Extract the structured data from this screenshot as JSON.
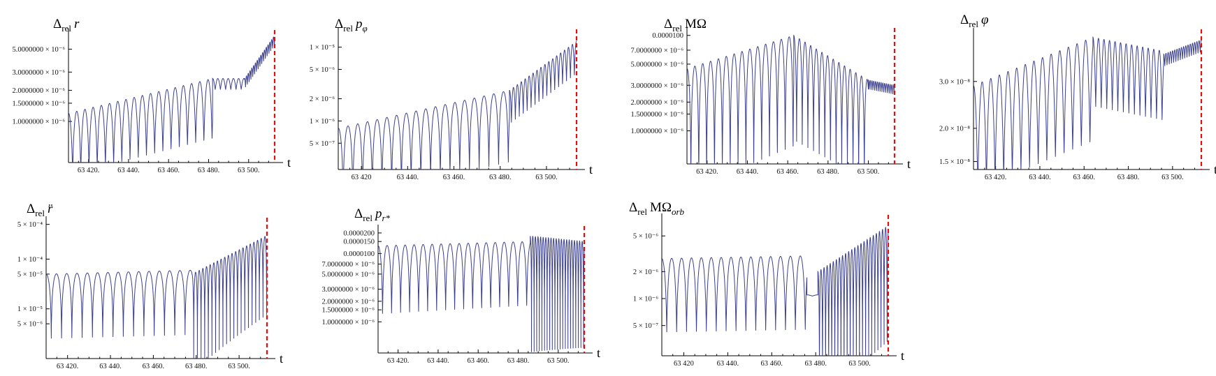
{
  "chart_data": [
    {
      "type": "line",
      "title": "Δrel r",
      "title_parts": {
        "main": "Δ",
        "sub": "rel",
        "tail": "r"
      },
      "xlabel": "t",
      "x_ticks": [
        "63 420.",
        "63 440.",
        "63 460.",
        "63 480.",
        "63 500."
      ],
      "x_tick_values": [
        63420,
        63440,
        63460,
        63480,
        63500
      ],
      "xlim": [
        63410,
        63513
      ],
      "y_scale": "log",
      "ylim": [
        4e-07,
        7.2e-06
      ],
      "y_ticks": [
        "5.0000000 × 10⁻⁶",
        "3.0000000 × 10⁻⁶",
        "2.0000000 × 10⁻⁶",
        "1.5000000 × 10⁻⁶",
        "1.0000000 × 10⁻⁶"
      ],
      "y_tick_values": [
        5e-06,
        3e-06,
        2e-06,
        1.5e-06,
        1e-06
      ],
      "cutoff_t": 63513,
      "series": [
        {
          "color": "#3b3f8c",
          "segments": [
            {
              "t0": 63410,
              "t1": 63482,
              "period": 4.1,
              "amp0": 1.2e-06,
              "amp1": 2.6e-06,
              "floor_ratio": 0.25
            },
            {
              "t0": 63482,
              "t1": 63498,
              "period": 2.6,
              "amp0": 2.6e-06,
              "amp1": 2.6e-06,
              "floor_ratio": 0.78
            },
            {
              "t0": 63498,
              "t1": 63513,
              "period": 0.9,
              "amp0": 2.6e-06,
              "amp1": 6.8e-06,
              "floor_ratio": 0.8
            }
          ]
        }
      ]
    },
    {
      "type": "line",
      "title": "Δrel pφ",
      "title_parts": {
        "main": "Δ",
        "sub": "rel",
        "tail": "p",
        "tail_sub": "φ"
      },
      "xlabel": "t",
      "x_ticks": [
        "63 420",
        "63 440.",
        "63 460.",
        "63 480.",
        "63 500."
      ],
      "x_tick_values": [
        63420,
        63440,
        63460,
        63480,
        63500
      ],
      "xlim": [
        63410,
        63513
      ],
      "y_scale": "log",
      "ylim": [
        2.2e-07,
        1.6e-05
      ],
      "y_ticks": [
        "1 × 10⁻⁵",
        "5 × 10⁻⁶",
        "2 × 10⁻⁶",
        "1 × 10⁻⁶",
        "5 × 10⁻⁷"
      ],
      "y_tick_values": [
        1e-05,
        5e-06,
        2e-06,
        1e-06,
        5e-07
      ],
      "cutoff_t": 63513,
      "series": [
        {
          "color": "#3b3f8c",
          "segments": [
            {
              "t0": 63410,
              "t1": 63484,
              "period": 4.2,
              "amp0": 8e-07,
              "amp1": 2.6e-06,
              "floor_ratio": 0.1
            },
            {
              "t0": 63484,
              "t1": 63513,
              "period": 1.7,
              "amp0": 2.6e-06,
              "amp1": 1.2e-05,
              "floor_ratio": 0.35
            }
          ]
        }
      ]
    },
    {
      "type": "line",
      "title": "Δrel MΩ",
      "title_parts": {
        "main": "Δ",
        "sub": "rel",
        "tail": "MΩ"
      },
      "xlabel": "t",
      "x_ticks": [
        "63 420.",
        "63 440.",
        "63 460.",
        "63 480.",
        "63 500."
      ],
      "x_tick_values": [
        63420,
        63440,
        63460,
        63480,
        63500
      ],
      "xlim": [
        63410,
        63513
      ],
      "y_scale": "log",
      "ylim": [
        4.5e-07,
        1.12e-05
      ],
      "y_ticks": [
        "0.0000100",
        "7.0000000 × 10⁻⁶",
        "5.0000000 × 10⁻⁶",
        "3.0000000 × 10⁻⁶",
        "2.0000000 × 10⁻⁶",
        "1.5000000 × 10⁻⁶",
        "1.0000000 × 10⁻⁶"
      ],
      "y_tick_values": [
        1e-05,
        7e-06,
        5e-06,
        3e-06,
        2e-06,
        1.5e-06,
        1e-06
      ],
      "cutoff_t": 63513,
      "series": [
        {
          "color": "#3b3f8c",
          "segments": [
            {
              "t0": 63410,
              "t1": 63463,
              "period": 3.9,
              "amp0": 4.5e-06,
              "amp1": 1e-05,
              "floor_ratio": 0.05
            },
            {
              "t0": 63463,
              "t1": 63500,
              "period": 2.8,
              "amp0": 1e-05,
              "amp1": 3.4e-06,
              "floor_ratio": 0.08
            },
            {
              "t0": 63500,
              "t1": 63513,
              "period": 0.9,
              "amp0": 3.4e-06,
              "amp1": 3e-06,
              "floor_ratio": 0.8
            }
          ]
        }
      ]
    },
    {
      "type": "line",
      "title": "Δrel φ",
      "title_parts": {
        "main": "Δ",
        "sub": "rel",
        "tail": "φ"
      },
      "xlabel": "t",
      "x_ticks": [
        "63 420.",
        "63 440.",
        "63 460.",
        "63 480.",
        "63 500."
      ],
      "x_tick_values": [
        63420,
        63440,
        63460,
        63480,
        63500
      ],
      "xlim": [
        63410,
        63513
      ],
      "y_scale": "log",
      "ylim": [
        1.4e-08,
        4.6e-08
      ],
      "y_ticks": [
        "3.0 × 10⁻⁸",
        "2.0 × 10⁻⁸",
        "1.5 × 10⁻⁸"
      ],
      "y_tick_values": [
        3e-08,
        2e-08,
        1.5e-08
      ],
      "cutoff_t": 63513,
      "series": [
        {
          "color": "#3b3f8c",
          "segments": [
            {
              "t0": 63410,
              "t1": 63464,
              "period": 3.9,
              "amp0": 2.9e-08,
              "amp1": 4.4e-08,
              "floor_ratio": 0.4
            },
            {
              "t0": 63464,
              "t1": 63496,
              "period": 2.5,
              "amp0": 4.4e-08,
              "amp1": 3.9e-08,
              "floor_ratio": 0.55
            },
            {
              "t0": 63496,
              "t1": 63513,
              "period": 1.0,
              "amp0": 3.8e-08,
              "amp1": 4.3e-08,
              "floor_ratio": 0.9
            }
          ]
        }
      ]
    },
    {
      "type": "line",
      "title": "Δrel r̈",
      "title_parts": {
        "main": "Δ",
        "sub": "rel",
        "tail": "r̈"
      },
      "xlabel": "t",
      "x_ticks": [
        "63 420.",
        "63 440.",
        "63 460.",
        "63 480.",
        "63 500."
      ],
      "x_tick_values": [
        63420,
        63440,
        63460,
        63480,
        63500
      ],
      "xlim": [
        63410,
        63513
      ],
      "y_scale": "log",
      "ylim": [
        1e-06,
        0.0006
      ],
      "y_ticks": [
        "5 × 10⁻⁴",
        "1 × 10⁻⁴",
        "5 × 10⁻⁵",
        "1 × 10⁻⁵",
        "5 × 10⁻⁶"
      ],
      "y_tick_values": [
        0.0005,
        0.0001,
        5e-05,
        1e-05,
        5e-06
      ],
      "cutoff_t": 63513,
      "series": [
        {
          "color": "#3b3f8c",
          "segments": [
            {
              "t0": 63410,
              "t1": 63478,
              "period": 4.8,
              "amp0": 5e-05,
              "amp1": 6e-05,
              "floor_ratio": 0.05
            },
            {
              "t0": 63478,
              "t1": 63513,
              "period": 1.7,
              "amp0": 5e-05,
              "amp1": 0.0003,
              "floor_ratio": 0.01
            }
          ]
        }
      ]
    },
    {
      "type": "line",
      "title": "Δrel pr*",
      "title_parts": {
        "main": "Δ",
        "sub": "rel",
        "tail": "p",
        "tail_sub": "r*"
      },
      "xlabel": "t",
      "x_ticks": [
        "63 420.",
        "63 440.",
        "63 460.",
        "63 480.",
        "63 500."
      ],
      "x_tick_values": [
        63420,
        63440,
        63460,
        63480,
        63500
      ],
      "xlim": [
        63410,
        63513
      ],
      "y_scale": "log",
      "ylim": [
        3.5e-07,
        2.3e-05
      ],
      "y_ticks": [
        "0.0000200",
        "0.0000150",
        "0.0000100",
        "7.0000000 × 10⁻⁶",
        "5.0000000 × 10⁻⁶",
        "3.0000000 × 10⁻⁶",
        "2.0000000 × 10⁻⁶",
        "1.5000000 × 10⁻⁶",
        "1.0000000 × 10⁻⁶"
      ],
      "y_tick_values": [
        2e-05,
        1.5e-05,
        1e-05,
        7e-06,
        5e-06,
        3e-06,
        2e-06,
        1.5e-06,
        1e-06
      ],
      "cutoff_t": 63513,
      "series": [
        {
          "color": "#3b3f8c",
          "segments": [
            {
              "t0": 63410,
              "t1": 63486,
              "period": 4.5,
              "amp0": 1.3e-05,
              "amp1": 1.5e-05,
              "floor_ratio": 0.1
            },
            {
              "t0": 63486,
              "t1": 63513,
              "period": 1.3,
              "amp0": 1.8e-05,
              "amp1": 1.5e-05,
              "floor_ratio": 0.02
            }
          ]
        }
      ]
    },
    {
      "type": "line",
      "title": "Δrel MΩorb",
      "title_parts": {
        "main": "Δ",
        "sub": "rel",
        "tail": "MΩ",
        "tail_sub": "orb"
      },
      "xlabel": "t",
      "x_ticks": [
        "63 420",
        "63 440.",
        "63 460.",
        "63 480.",
        "63 500."
      ],
      "x_tick_values": [
        63420,
        63440,
        63460,
        63480,
        63500
      ],
      "xlim": [
        63410,
        63513
      ],
      "y_scale": "log",
      "ylim": [
        2.3e-07,
        8e-06
      ],
      "y_ticks": [
        "5 × 10⁻⁶",
        "2 × 10⁻⁶",
        "1 × 10⁻⁶",
        "5 × 10⁻⁷"
      ],
      "y_tick_values": [
        5e-06,
        2e-06,
        1e-06,
        5e-07
      ],
      "cutoff_t": 63513,
      "series": [
        {
          "color": "#3b3f8c",
          "segments": [
            {
              "t0": 63410,
              "t1": 63476,
              "period": 4.5,
              "amp0": 2.8e-06,
              "amp1": 3e-06,
              "floor_ratio": 0.15
            },
            {
              "t0": 63476,
              "t1": 63481,
              "period": 5.0,
              "amp0": 1.1e-06,
              "amp1": 1.1e-06,
              "floor_ratio": 0.97
            },
            {
              "t0": 63481,
              "t1": 63513,
              "period": 1.4,
              "amp0": 2e-06,
              "amp1": 6.5e-06,
              "floor_ratio": 0.03
            }
          ]
        }
      ]
    }
  ]
}
